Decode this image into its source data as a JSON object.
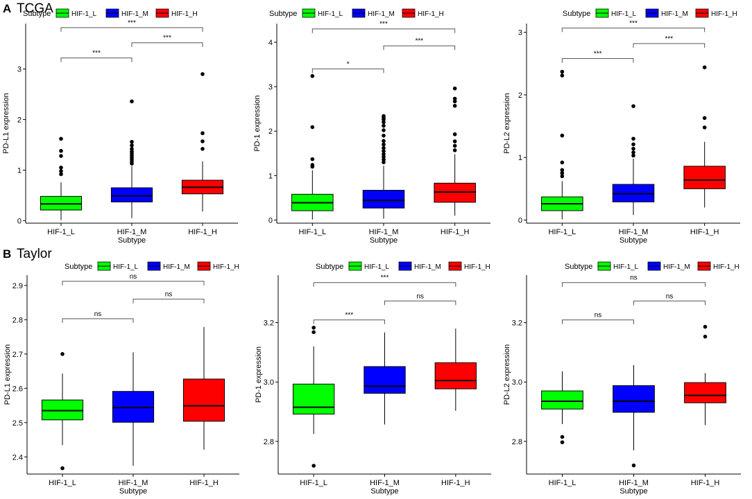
{
  "sections": [
    {
      "letter": "A",
      "title": "TCGA"
    },
    {
      "letter": "B",
      "title": "Taylor"
    }
  ],
  "colors": {
    "HIF-1_L": "#00ff00",
    "HIF-1_M": "#0000ff",
    "HIF-1_H": "#ff0000"
  },
  "chart_data": [
    {
      "type": "boxplot",
      "section": "A",
      "title": "",
      "legend": {
        "title": "Subtype",
        "entries": [
          "HIF-1_L",
          "HIF-1_M",
          "HIF-1_H"
        ],
        "placement": "top"
      },
      "categories": [
        "HIF-1_L",
        "HIF-1_M",
        "HIF-1_H"
      ],
      "xlabel": "Subtype",
      "ylabel": "PD-L1 expression",
      "ylim": [
        -0.05,
        3.9
      ],
      "yticks": [
        0,
        1,
        2,
        3
      ],
      "ytick_labels": [
        "0",
        "1",
        "2",
        "3"
      ],
      "boxes": [
        {
          "category": "HIF-1_L",
          "q1": 0.21,
          "median": 0.33,
          "q3": 0.48,
          "whisker_low": 0.01,
          "whisker_high": 0.76,
          "outliers": [
            0.92,
            0.98,
            1.05,
            1.28,
            1.38,
            1.62
          ]
        },
        {
          "category": "HIF-1_M",
          "q1": 0.37,
          "median": 0.49,
          "q3": 0.65,
          "whisker_low": 0.05,
          "whisker_high": 1.08,
          "outliers": [
            1.13,
            1.17,
            1.21,
            1.25,
            1.29,
            1.33,
            1.37,
            1.42,
            1.49,
            1.56,
            2.36
          ]
        },
        {
          "category": "HIF-1_H",
          "q1": 0.53,
          "median": 0.66,
          "q3": 0.8,
          "whisker_low": 0.18,
          "whisker_high": 1.17,
          "outliers": [
            1.42,
            1.57,
            1.73,
            2.9
          ]
        }
      ],
      "comparisons": [
        {
          "from": "HIF-1_L",
          "to": "HIF-1_M",
          "y": 3.22,
          "label": "***"
        },
        {
          "from": "HIF-1_M",
          "to": "HIF-1_H",
          "y": 3.52,
          "label": "***"
        },
        {
          "from": "HIF-1_L",
          "to": "HIF-1_H",
          "y": 3.82,
          "label": "***"
        }
      ]
    },
    {
      "type": "boxplot",
      "section": "A",
      "title": "",
      "legend": {
        "title": "Subtype",
        "entries": [
          "HIF-1_L",
          "HIF-1_M",
          "HIF-1_H"
        ],
        "placement": "top"
      },
      "categories": [
        "HIF-1_L",
        "HIF-1_M",
        "HIF-1_H"
      ],
      "xlabel": "Subtype",
      "ylabel": "PD-1 expression",
      "ylim": [
        -0.07,
        4.42
      ],
      "yticks": [
        0,
        1,
        2,
        3,
        4
      ],
      "ytick_labels": [
        "0",
        "1",
        "2",
        "3",
        "4"
      ],
      "boxes": [
        {
          "category": "HIF-1_L",
          "q1": 0.21,
          "median": 0.39,
          "q3": 0.58,
          "whisker_low": 0.01,
          "whisker_high": 1.12,
          "outliers": [
            1.2,
            1.24,
            1.37,
            2.09,
            3.24
          ]
        },
        {
          "category": "HIF-1_M",
          "q1": 0.27,
          "median": 0.44,
          "q3": 0.67,
          "whisker_low": 0.03,
          "whisker_high": 1.22,
          "outliers": [
            1.3,
            1.36,
            1.42,
            1.48,
            1.55,
            1.62,
            1.7,
            1.78,
            1.9,
            2.02,
            2.12,
            2.2,
            2.26,
            2.3,
            2.34
          ]
        },
        {
          "category": "HIF-1_H",
          "q1": 0.4,
          "median": 0.63,
          "q3": 0.83,
          "whisker_low": 0.1,
          "whisker_high": 1.48,
          "outliers": [
            1.57,
            1.67,
            1.77,
            1.93,
            2.57,
            2.67,
            2.73,
            2.96
          ]
        }
      ],
      "comparisons": [
        {
          "from": "HIF-1_L",
          "to": "HIF-1_M",
          "y": 3.4,
          "label": "*"
        },
        {
          "from": "HIF-1_M",
          "to": "HIF-1_H",
          "y": 3.92,
          "label": "***"
        },
        {
          "from": "HIF-1_L",
          "to": "HIF-1_H",
          "y": 4.3,
          "label": "***"
        }
      ]
    },
    {
      "type": "boxplot",
      "section": "A",
      "title": "",
      "legend": {
        "title": "Subtype",
        "entries": [
          "HIF-1_L",
          "HIF-1_M",
          "HIF-1_H"
        ],
        "placement": "top"
      },
      "categories": [
        "HIF-1_L",
        "HIF-1_M",
        "HIF-1_H"
      ],
      "xlabel": "Subtype",
      "ylabel": "PD-L2 expression",
      "ylim": [
        -0.05,
        3.14
      ],
      "yticks": [
        0,
        1,
        2,
        3
      ],
      "ytick_labels": [
        "0",
        "1",
        "2",
        "3"
      ],
      "boxes": [
        {
          "category": "HIF-1_L",
          "q1": 0.15,
          "median": 0.26,
          "q3": 0.37,
          "whisker_low": 0.01,
          "whisker_high": 0.62,
          "outliers": [
            0.7,
            0.75,
            0.8,
            0.92,
            1.35,
            2.31,
            2.37
          ]
        },
        {
          "category": "HIF-1_M",
          "q1": 0.29,
          "median": 0.42,
          "q3": 0.57,
          "whisker_low": 0.08,
          "whisker_high": 0.98,
          "outliers": [
            1.03,
            1.08,
            1.14,
            1.21,
            1.3,
            1.82
          ]
        },
        {
          "category": "HIF-1_H",
          "q1": 0.5,
          "median": 0.64,
          "q3": 0.86,
          "whisker_low": 0.2,
          "whisker_high": 1.25,
          "outliers": [
            1.48,
            1.63,
            2.44
          ]
        }
      ],
      "comparisons": [
        {
          "from": "HIF-1_L",
          "to": "HIF-1_M",
          "y": 2.58,
          "label": "***"
        },
        {
          "from": "HIF-1_M",
          "to": "HIF-1_H",
          "y": 2.82,
          "label": "***"
        },
        {
          "from": "HIF-1_L",
          "to": "HIF-1_H",
          "y": 3.07,
          "label": "***"
        }
      ]
    },
    {
      "type": "boxplot",
      "section": "B",
      "title": "",
      "legend": {
        "title": "Subtype",
        "entries": [
          "HIF-1_L",
          "HIF-1_M",
          "HIF-1_H"
        ],
        "placement": "top"
      },
      "categories": [
        "HIF-1_L",
        "HIF-1_M",
        "HIF-1_H"
      ],
      "xlabel": "Subtype",
      "ylabel": "PD-L1 expression",
      "ylim": [
        2.35,
        2.93
      ],
      "yticks": [
        2.4,
        2.5,
        2.6,
        2.7,
        2.8,
        2.9
      ],
      "ytick_labels": [
        "2.4",
        "2.5",
        "2.6",
        "2.7",
        "2.8",
        "2.9"
      ],
      "boxes": [
        {
          "category": "HIF-1_L",
          "q1": 2.508,
          "median": 2.535,
          "q3": 2.566,
          "whisker_low": 2.434,
          "whisker_high": 2.643,
          "outliers": [
            2.367,
            2.7
          ]
        },
        {
          "category": "HIF-1_M",
          "q1": 2.501,
          "median": 2.544,
          "q3": 2.591,
          "whisker_low": 2.374,
          "whisker_high": 2.705,
          "outliers": []
        },
        {
          "category": "HIF-1_H",
          "q1": 2.504,
          "median": 2.549,
          "q3": 2.627,
          "whisker_low": 2.421,
          "whisker_high": 2.779,
          "outliers": []
        }
      ],
      "comparisons": [
        {
          "from": "HIF-1_L",
          "to": "HIF-1_M",
          "y": 2.803,
          "label": "ns"
        },
        {
          "from": "HIF-1_M",
          "to": "HIF-1_H",
          "y": 2.86,
          "label": "ns"
        },
        {
          "from": "HIF-1_L",
          "to": "HIF-1_H",
          "y": 2.912,
          "label": "ns"
        }
      ]
    },
    {
      "type": "boxplot",
      "section": "B",
      "title": "",
      "legend": {
        "title": "Subtype",
        "entries": [
          "HIF-1_L",
          "HIF-1_M",
          "HIF-1_H"
        ],
        "placement": "top"
      },
      "categories": [
        "HIF-1_L",
        "HIF-1_M",
        "HIF-1_H"
      ],
      "xlabel": "Subtype",
      "ylabel": "PD-1 expression",
      "ylim": [
        2.69,
        3.36
      ],
      "yticks": [
        2.8,
        3.0,
        3.2
      ],
      "ytick_labels": [
        "2.8",
        "3.0",
        "3.2"
      ],
      "boxes": [
        {
          "category": "HIF-1_L",
          "q1": 2.892,
          "median": 2.915,
          "q3": 2.993,
          "whisker_low": 2.825,
          "whisker_high": 3.12,
          "outliers": [
            2.718,
            3.168,
            3.183
          ]
        },
        {
          "category": "HIF-1_M",
          "q1": 2.962,
          "median": 2.986,
          "q3": 3.052,
          "whisker_low": 2.857,
          "whisker_high": 3.167,
          "outliers": []
        },
        {
          "category": "HIF-1_H",
          "q1": 2.977,
          "median": 3.005,
          "q3": 3.065,
          "whisker_low": 2.903,
          "whisker_high": 3.18,
          "outliers": []
        }
      ],
      "comparisons": [
        {
          "from": "HIF-1_L",
          "to": "HIF-1_M",
          "y": 3.209,
          "label": "***"
        },
        {
          "from": "HIF-1_M",
          "to": "HIF-1_H",
          "y": 3.273,
          "label": "ns"
        },
        {
          "from": "HIF-1_L",
          "to": "HIF-1_H",
          "y": 3.335,
          "label": "***"
        }
      ]
    },
    {
      "type": "boxplot",
      "section": "B",
      "title": "",
      "legend": {
        "title": "Subtype",
        "entries": [
          "HIF-1_L",
          "HIF-1_M",
          "HIF-1_H"
        ],
        "placement": "top"
      },
      "categories": [
        "HIF-1_L",
        "HIF-1_M",
        "HIF-1_H"
      ],
      "xlabel": "Subtype",
      "ylabel": "PD-L2 expression",
      "ylim": [
        2.69,
        3.36
      ],
      "yticks": [
        2.8,
        3.0,
        3.2
      ],
      "ytick_labels": [
        "2.8",
        "3.0",
        "3.2"
      ],
      "boxes": [
        {
          "category": "HIF-1_L",
          "q1": 2.909,
          "median": 2.935,
          "q3": 2.97,
          "whisker_low": 2.858,
          "whisker_high": 3.036,
          "outliers": [
            2.797,
            2.815
          ]
        },
        {
          "category": "HIF-1_M",
          "q1": 2.898,
          "median": 2.935,
          "q3": 2.988,
          "whisker_low": 2.77,
          "whisker_high": 3.057,
          "outliers": [
            2.719
          ]
        },
        {
          "category": "HIF-1_H",
          "q1": 2.93,
          "median": 2.955,
          "q3": 2.998,
          "whisker_low": 2.855,
          "whisker_high": 3.03,
          "outliers": [
            3.153,
            3.186
          ]
        }
      ],
      "comparisons": [
        {
          "from": "HIF-1_L",
          "to": "HIF-1_M",
          "y": 3.209,
          "label": "ns"
        },
        {
          "from": "HIF-1_M",
          "to": "HIF-1_H",
          "y": 3.273,
          "label": "ns"
        },
        {
          "from": "HIF-1_L",
          "to": "HIF-1_H",
          "y": 3.335,
          "label": "ns"
        }
      ]
    }
  ]
}
